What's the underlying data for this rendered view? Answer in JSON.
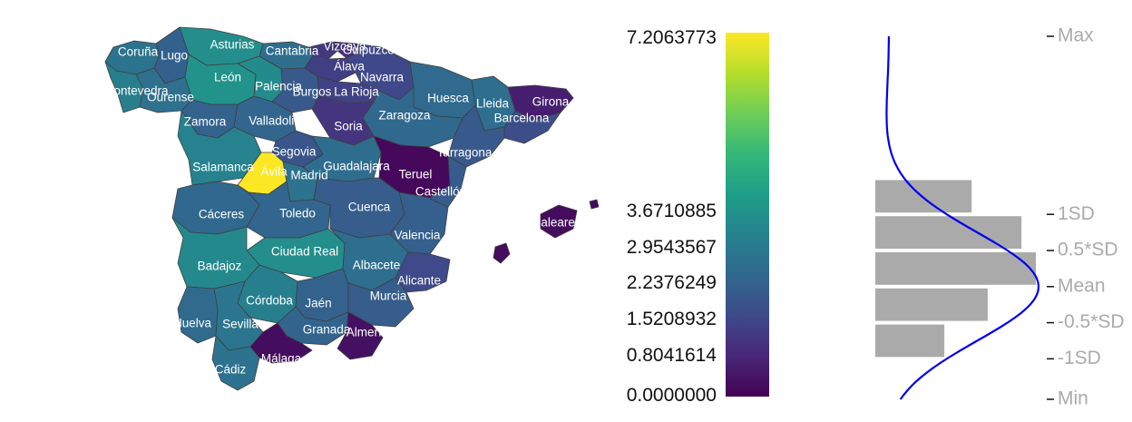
{
  "colorbar": {
    "labels": [
      {
        "value": 7.2063773,
        "text": "7.2063773"
      },
      {
        "value": 3.6710885,
        "text": "3.6710885"
      },
      {
        "value": 2.9543567,
        "text": "2.9543567"
      },
      {
        "value": 2.2376249,
        "text": "2.2376249"
      },
      {
        "value": 1.5208932,
        "text": "1.5208932"
      },
      {
        "value": 0.8041614,
        "text": "0.8041614"
      },
      {
        "value": 0.0,
        "text": "0.0000000"
      }
    ],
    "min": 0.0,
    "max": 7.2063773,
    "palette": [
      "#440154",
      "#482878",
      "#3e4a89",
      "#31688e",
      "#26828e",
      "#1f9e89",
      "#35b779",
      "#6ece58",
      "#b5de2b",
      "#fde725"
    ]
  },
  "stats": {
    "min": 0.0,
    "max": 7.2063773,
    "mean": 2.2376249,
    "sd": 1.4334636,
    "labels": [
      {
        "key": "max",
        "text": "Max"
      },
      {
        "key": "sd1",
        "text": "1SD"
      },
      {
        "key": "sd05",
        "text": "0.5*SD"
      },
      {
        "key": "mean",
        "text": "Mean"
      },
      {
        "key": "sdm05",
        "text": "-0.5*SD"
      },
      {
        "key": "sdm1",
        "text": "-1SD"
      },
      {
        "key": "min",
        "text": "Min"
      }
    ],
    "histogram": [
      {
        "from": 0.8041614,
        "to": 1.5208932,
        "fraction": 0.43
      },
      {
        "from": 1.5208932,
        "to": 2.2376249,
        "fraction": 0.7
      },
      {
        "from": 2.2376249,
        "to": 2.9543567,
        "fraction": 1.0
      },
      {
        "from": 2.9543567,
        "to": 3.6710885,
        "fraction": 0.91
      },
      {
        "from": 3.6710885,
        "to": 4.3878203,
        "fraction": 0.6
      }
    ],
    "density_color": "#0000ee",
    "bar_color": "#aaaaaa"
  },
  "map": {
    "labels": [
      "Coruña",
      "Lugo",
      "Asturias",
      "Cantabria",
      "Vizcaya",
      "Guipúzcoa",
      "Álava",
      "Navarra",
      "León",
      "Palencia",
      "Burgos",
      "La Rioja",
      "Pontevedra",
      "Ourense",
      "Huesca",
      "Lleida",
      "Girona",
      "Barcelona",
      "Zaragoza",
      "Zamora",
      "Valladolid",
      "Soria",
      "Segovia",
      "Tarragona",
      "Salamanca",
      "Ávila",
      "Madrid",
      "Guadalajara",
      "Teruel",
      "Castellón",
      "Baleares",
      "Cáceres",
      "Toledo",
      "Cuenca",
      "Valencia",
      "Ciudad Real",
      "Badajoz",
      "Albacete",
      "Alicante",
      "Córdoba",
      "Jaén",
      "Murcia",
      "Huelva",
      "Sevilla",
      "Granada",
      "Almería",
      "Cádiz",
      "Málaga"
    ]
  },
  "provinces": [
    {
      "name": "Coruña",
      "value": 2.75
    },
    {
      "name": "Lugo",
      "value": 2.2
    },
    {
      "name": "Asturias",
      "value": 3.55
    },
    {
      "name": "Cantabria",
      "value": 2.55
    },
    {
      "name": "Vizcaya",
      "value": 1.2
    },
    {
      "name": "Guipúzcoa",
      "value": 1.0
    },
    {
      "name": "Álava",
      "value": 1.35
    },
    {
      "name": "Navarra",
      "value": 1.55
    },
    {
      "name": "León",
      "value": 3.7
    },
    {
      "name": "Palencia",
      "value": 3.45
    },
    {
      "name": "Burgos",
      "value": 2.0
    },
    {
      "name": "La Rioja",
      "value": 1.4
    },
    {
      "name": "Pontevedra",
      "value": 3.1
    },
    {
      "name": "Ourense",
      "value": 2.65
    },
    {
      "name": "Huesca",
      "value": 2.45
    },
    {
      "name": "Lleida",
      "value": 2.6
    },
    {
      "name": "Girona",
      "value": 0.6
    },
    {
      "name": "Barcelona",
      "value": 1.7
    },
    {
      "name": "Zaragoza",
      "value": 2.4
    },
    {
      "name": "Zamora",
      "value": 2.25
    },
    {
      "name": "Valladolid",
      "value": 2.35
    },
    {
      "name": "Soria",
      "value": 1.1
    },
    {
      "name": "Segovia",
      "value": 1.9
    },
    {
      "name": "Tarragona",
      "value": 2.0
    },
    {
      "name": "Salamanca",
      "value": 3.2
    },
    {
      "name": "Ávila",
      "value": 7.2
    },
    {
      "name": "Madrid",
      "value": 2.7
    },
    {
      "name": "Guadalajara",
      "value": 2.55
    },
    {
      "name": "Teruel",
      "value": 0.15
    },
    {
      "name": "Castellón",
      "value": 2.05
    },
    {
      "name": "Baleares",
      "value": 0.2
    },
    {
      "name": "Cáceres",
      "value": 2.4
    },
    {
      "name": "Toledo",
      "value": 2.35
    },
    {
      "name": "Cuenca",
      "value": 2.1
    },
    {
      "name": "Valencia",
      "value": 2.15
    },
    {
      "name": "Ciudad Real",
      "value": 3.55
    },
    {
      "name": "Badajoz",
      "value": 3.4
    },
    {
      "name": "Albacete",
      "value": 2.6
    },
    {
      "name": "Alicante",
      "value": 1.6
    },
    {
      "name": "Córdoba",
      "value": 3.1
    },
    {
      "name": "Jaén",
      "value": 2.25
    },
    {
      "name": "Murcia",
      "value": 2.1
    },
    {
      "name": "Huelva",
      "value": 2.5
    },
    {
      "name": "Sevilla",
      "value": 2.8
    },
    {
      "name": "Granada",
      "value": 2.3
    },
    {
      "name": "Almería",
      "value": 0.3
    },
    {
      "name": "Cádiz",
      "value": 2.7
    },
    {
      "name": "Málaga",
      "value": 0.25
    }
  ]
}
